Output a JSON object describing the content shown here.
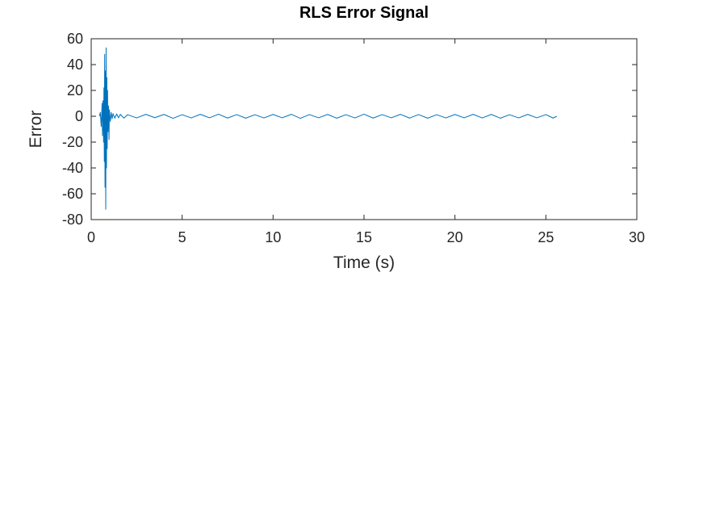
{
  "chart_data": {
    "type": "line",
    "title": "RLS Error Signal",
    "xlabel": "Time (s)",
    "ylabel": "Error",
    "xlim": [
      0,
      30
    ],
    "ylim": [
      -80,
      60
    ],
    "xticks": [
      0,
      5,
      10,
      15,
      20,
      25,
      30
    ],
    "yticks": [
      60,
      40,
      20,
      0,
      -20,
      -40,
      -60,
      -80
    ],
    "grid": false,
    "legend": "none",
    "series": [
      {
        "color": "#0072bd",
        "x": [
          0.45,
          0.5,
          0.55,
          0.6,
          0.62,
          0.65,
          0.68,
          0.7,
          0.72,
          0.74,
          0.76,
          0.78,
          0.8,
          0.82,
          0.84,
          0.86,
          0.88,
          0.9,
          0.92,
          0.95,
          0.98,
          1.0,
          1.05,
          1.1,
          1.15,
          1.2,
          1.3,
          1.4,
          1.5,
          1.6,
          1.8,
          2.0,
          2.5,
          3.0,
          3.5,
          4.0,
          4.5,
          5.0,
          5.5,
          6.0,
          6.5,
          7.0,
          7.5,
          8.0,
          8.5,
          9.0,
          9.5,
          10.0,
          10.5,
          11.0,
          11.5,
          12.0,
          12.5,
          13.0,
          13.5,
          14.0,
          14.5,
          15.0,
          15.5,
          16.0,
          16.5,
          17.0,
          17.5,
          18.0,
          18.5,
          19.0,
          19.5,
          20.0,
          20.5,
          21.0,
          21.5,
          22.0,
          22.5,
          23.0,
          23.5,
          24.0,
          24.5,
          25.0,
          25.4,
          25.6
        ],
        "y": [
          0,
          3,
          -8,
          10,
          -15,
          12,
          -20,
          22,
          -35,
          48,
          -55,
          35,
          -72,
          53,
          -40,
          30,
          -25,
          20,
          -12,
          8,
          -18,
          5,
          -4,
          3,
          -2,
          2,
          -1.5,
          1.8,
          -1.2,
          1.5,
          -1.4,
          1.2,
          -1.3,
          1.5,
          -1.1,
          1.4,
          -1.6,
          1.2,
          -1.3,
          1.5,
          -1.2,
          1.6,
          -1.4,
          1.3,
          -1.5,
          1.2,
          -1.3,
          1.4,
          -1.2,
          1.5,
          -1.6,
          1.3,
          -1.2,
          1.4,
          -1.5,
          1.2,
          -1.3,
          1.6,
          -1.4,
          1.3,
          -1.2,
          1.5,
          -1.4,
          1.3,
          -1.5,
          1.2,
          -1.3,
          1.4,
          -1.2,
          1.5,
          -1.3,
          1.4,
          -1.5,
          1.2,
          -1.3,
          1.4,
          -1.2,
          1.3,
          -1.4,
          0
        ]
      }
    ]
  }
}
